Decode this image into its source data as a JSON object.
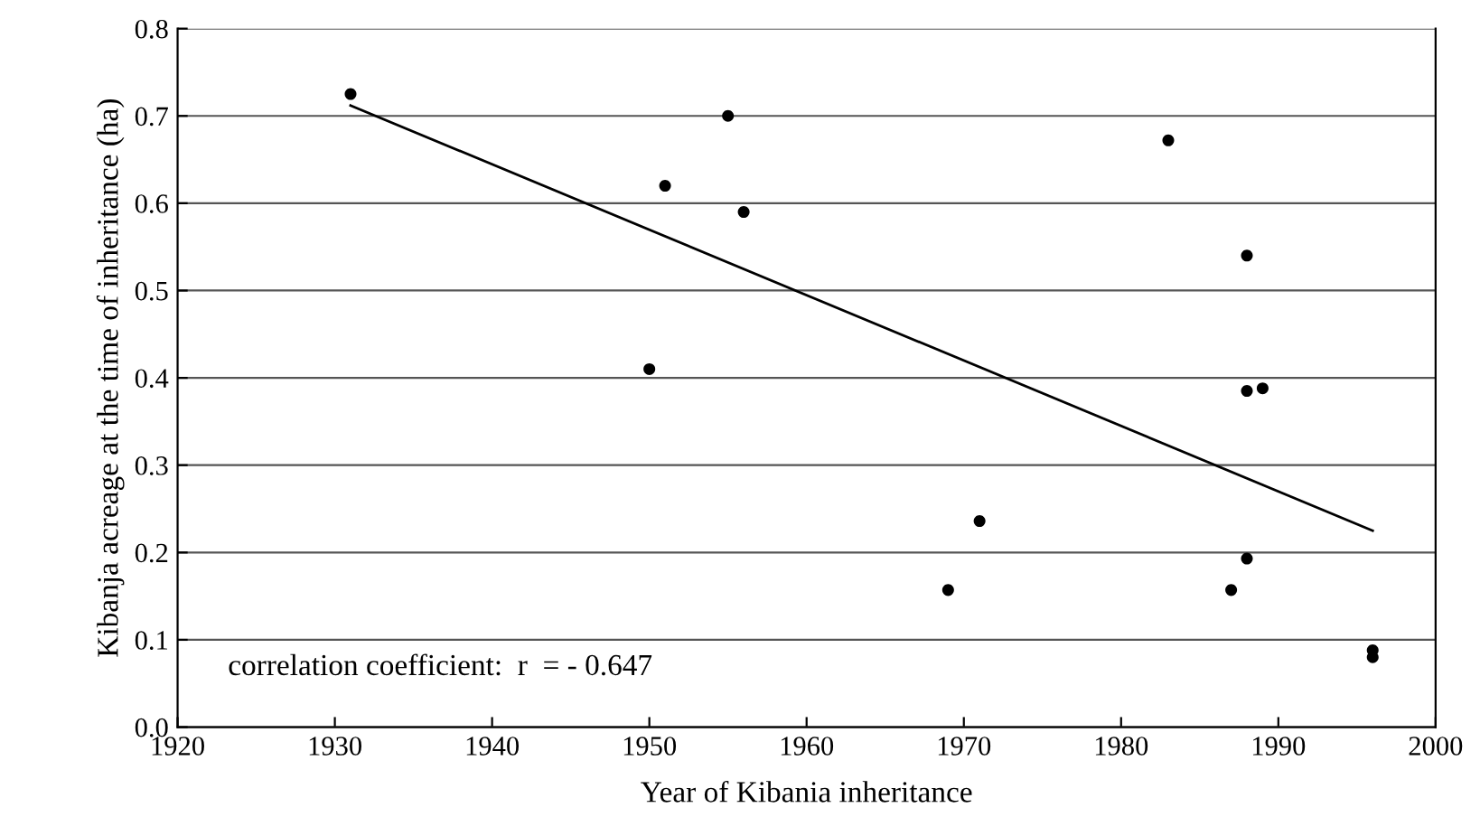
{
  "chart_data": {
    "type": "scatter",
    "xlabel": "Year of Kibania inheritance",
    "ylabel": "Kibanja acreage at the time of inheritance (ha)",
    "series": [
      {
        "color": "#000000",
        "marker": "circle",
        "x": [
          1931,
          1950,
          1951,
          1955,
          1956,
          1969,
          1971,
          1983,
          1987,
          1988,
          1988,
          1988,
          1989,
          1996,
          1996
        ],
        "values": [
          0.725,
          0.41,
          0.62,
          0.7,
          0.59,
          0.157,
          0.236,
          0.672,
          0.157,
          0.54,
          0.385,
          0.193,
          0.388,
          0.088,
          0.08
        ]
      },
      {
        "type": "line",
        "marker": "none",
        "color": "#000000",
        "x": [
          1931,
          1996
        ],
        "values": [
          0.712,
          0.225
        ]
      }
    ],
    "annotations": [
      "correlation coefficient:  r  = - 0.647"
    ],
    "xlim": [
      1920,
      2000
    ],
    "xticks": [
      1920,
      1930,
      1940,
      1950,
      1960,
      1970,
      1980,
      1990,
      2000
    ],
    "ylim": [
      0,
      0.8
    ],
    "yticks": [
      {
        "value": 0,
        "label": "0.0"
      },
      0.1,
      0.2,
      0.3,
      0.4,
      0.5,
      0.6,
      0.7,
      0.8
    ],
    "grid": "y",
    "line_style": "solid"
  }
}
